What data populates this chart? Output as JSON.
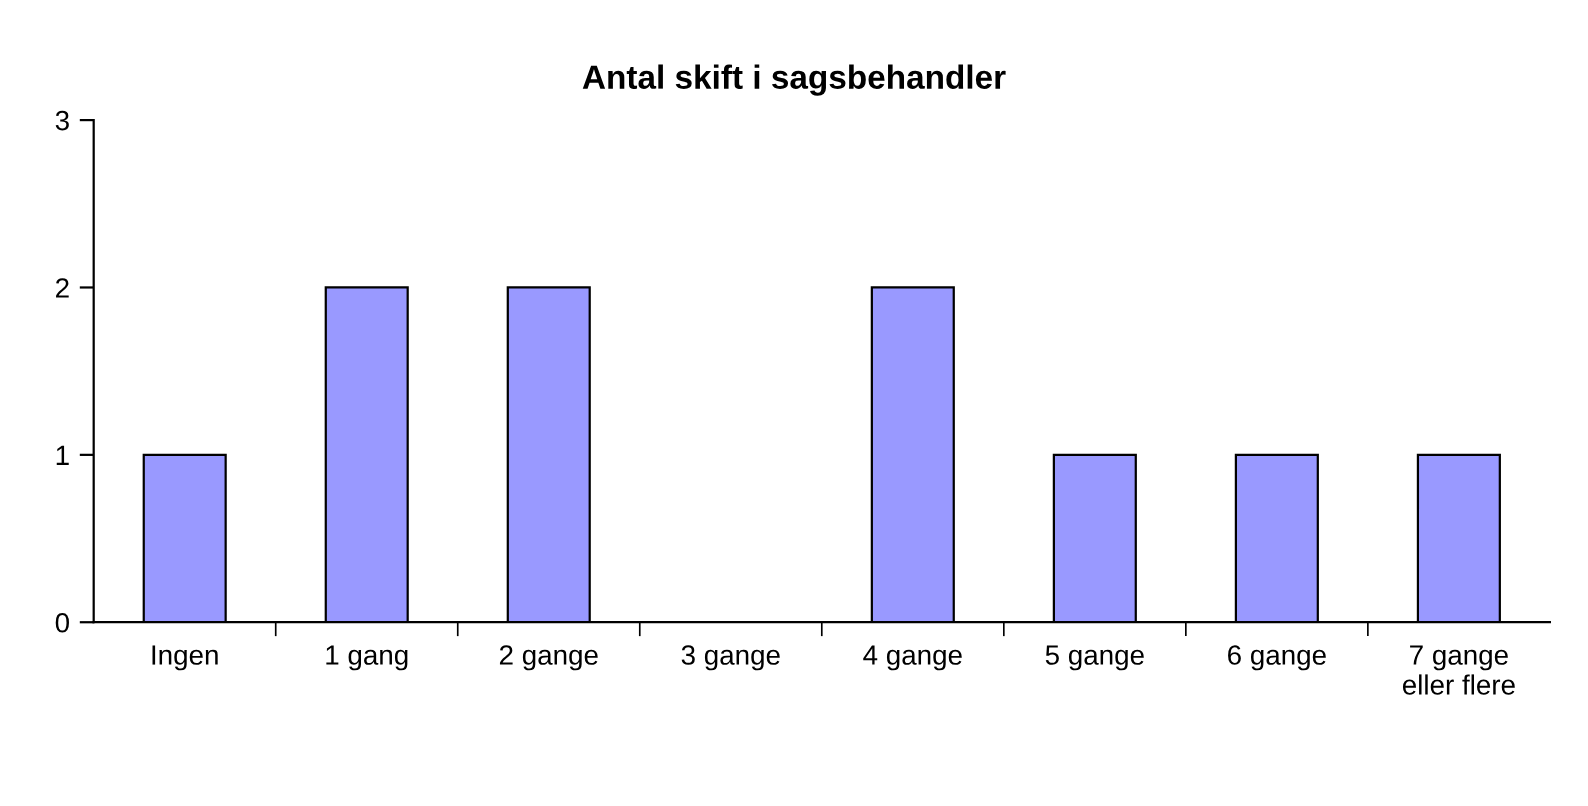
{
  "chart_data": {
    "type": "bar",
    "title": "Antal skift i sagsbehandler",
    "categories": [
      "Ingen",
      "1 gang",
      "2 gange",
      "3 gange",
      "4 gange",
      "5 gange",
      "6 gange",
      "7 gange\neller flere"
    ],
    "values": [
      1,
      2,
      2,
      0,
      2,
      1,
      1,
      1
    ],
    "color": "#9999ff",
    "ylim": [
      0,
      3
    ],
    "yticks": [
      0,
      1,
      2,
      3
    ],
    "grid": false,
    "legend": false
  }
}
